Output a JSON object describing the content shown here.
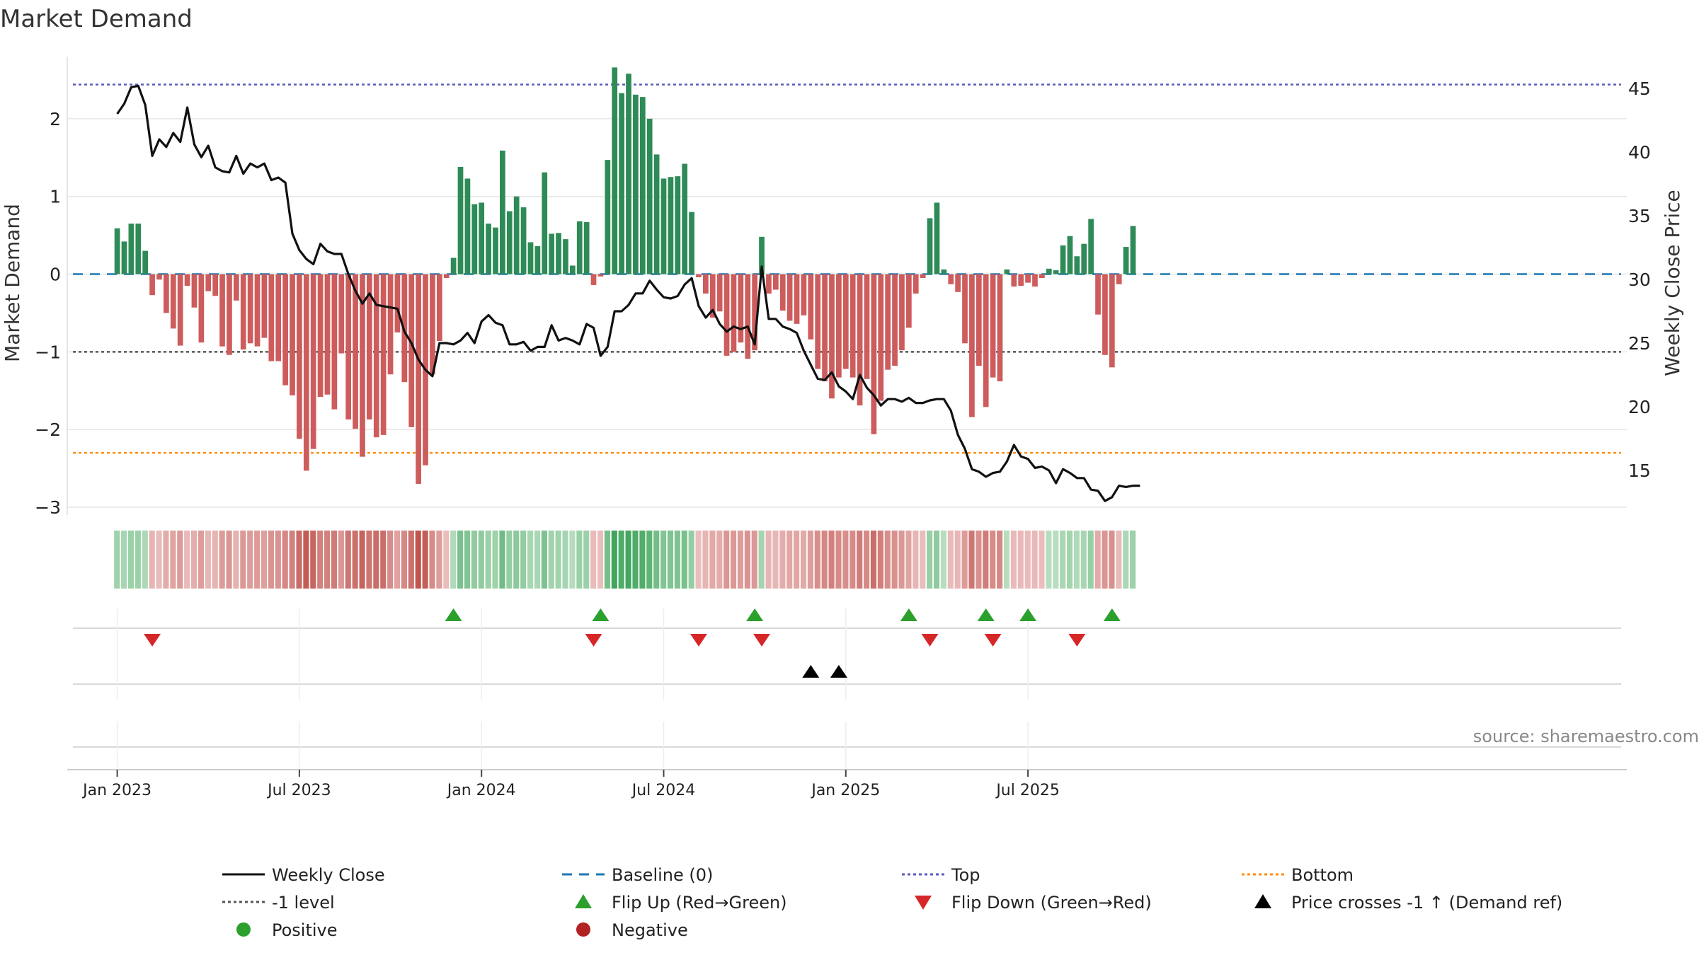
{
  "colors": {
    "green": "#2e8b57",
    "red": "#cd5c5c",
    "price": "#111111",
    "baseline": "#1f77b4",
    "top": "#5b5bbd",
    "bottom": "#ff8c00",
    "minus1": "#555555",
    "flip_up": "#2ca02c",
    "flip_down": "#d62728",
    "cross": "#000000",
    "positive": "#2ca02c",
    "negative": "#b22222",
    "grid": "#e6e6e6",
    "text": "#222222",
    "source": "#888888"
  },
  "chart_data": {
    "type": "bar",
    "title": "Market Demand",
    "ylabel": "Market Demand",
    "y2label": "Weekly Close Price",
    "source": "source: sharemaestro.com",
    "ylim": [
      -3.1,
      2.8
    ],
    "y_ticks": [
      2,
      1,
      0,
      -1,
      -2,
      -3
    ],
    "y_tick_labels": [
      "2",
      "1",
      "0",
      "−1",
      "−2",
      "−3"
    ],
    "y2lim": [
      11.5,
      47.5
    ],
    "y2_ticks": [
      45,
      40,
      35,
      30,
      25,
      20,
      15
    ],
    "y2_tick_labels": [
      "45",
      "40",
      "35",
      "30",
      "25",
      "20",
      "15"
    ],
    "x_ticks": [
      {
        "week": 1,
        "label": "Jan 2023"
      },
      {
        "week": 27,
        "label": "Jul 2023"
      },
      {
        "week": 53,
        "label": "Jan 2024"
      },
      {
        "week": 79,
        "label": "Jul 2024"
      },
      {
        "week": 105,
        "label": "Jan 2025"
      },
      {
        "week": 131,
        "label": "Jul 2025"
      }
    ],
    "reference_lines": {
      "top": 2.44,
      "bottom": -2.3,
      "minus1": -1,
      "baseline": 0
    },
    "demand": [
      0.59,
      0.42,
      0.65,
      0.65,
      0.3,
      -0.27,
      -0.07,
      -0.5,
      -0.7,
      -0.92,
      -0.15,
      -0.43,
      -0.88,
      -0.22,
      -0.28,
      -0.93,
      -1.04,
      -0.34,
      -0.97,
      -0.89,
      -0.93,
      -0.82,
      -1.12,
      -1.12,
      -1.43,
      -1.56,
      -2.12,
      -2.53,
      -2.25,
      -1.58,
      -1.55,
      -1.74,
      -1.02,
      -1.87,
      -1.99,
      -2.35,
      -1.87,
      -2.1,
      -2.07,
      -1.29,
      -0.75,
      -1.39,
      -1.97,
      -2.7,
      -2.46,
      -1.29,
      -0.86,
      -0.05,
      0.21,
      1.38,
      1.23,
      0.9,
      0.92,
      0.65,
      0.6,
      1.59,
      0.81,
      1.0,
      0.86,
      0.41,
      0.36,
      1.31,
      0.52,
      0.53,
      0.45,
      0.11,
      0.68,
      0.67,
      -0.14,
      -0.03,
      1.47,
      2.66,
      2.33,
      2.58,
      2.31,
      2.28,
      2.0,
      1.54,
      1.23,
      1.25,
      1.26,
      1.42,
      0.8,
      -0.04,
      -0.25,
      -0.56,
      -0.48,
      -1.05,
      -1.0,
      -0.88,
      -1.09,
      -0.98,
      0.48,
      -0.25,
      -0.2,
      -0.47,
      -0.6,
      -0.64,
      -0.53,
      -0.84,
      -1.22,
      -1.38,
      -1.6,
      -1.33,
      -1.22,
      -1.33,
      -1.69,
      -1.35,
      -2.06,
      -1.63,
      -1.23,
      -1.18,
      -0.98,
      -0.69,
      -0.25,
      -0.05,
      0.72,
      0.92,
      0.06,
      -0.13,
      -0.23,
      -0.89,
      -1.84,
      -1.18,
      -1.71,
      -1.33,
      -1.38,
      0.06,
      -0.16,
      -0.15,
      -0.11,
      -0.16,
      -0.05,
      0.07,
      0.05,
      0.37,
      0.49,
      0.23,
      0.39,
      0.71,
      -0.52,
      -1.04,
      -1.2,
      -0.13,
      0.35,
      0.62
    ],
    "weekly_close": [
      43.0,
      43.8,
      45.1,
      45.2,
      43.7,
      39.7,
      41.0,
      40.4,
      41.5,
      40.8,
      43.5,
      40.6,
      39.6,
      40.5,
      38.8,
      38.5,
      38.4,
      39.7,
      38.3,
      39.1,
      38.8,
      39.1,
      37.8,
      38.0,
      37.6,
      33.6,
      32.3,
      31.6,
      31.2,
      32.8,
      32.2,
      32.0,
      32.0,
      30.4,
      29.1,
      28.1,
      28.9,
      28.0,
      27.9,
      27.8,
      27.7,
      25.9,
      25.0,
      23.7,
      22.9,
      22.4,
      25.0,
      25.0,
      24.9,
      25.2,
      25.8,
      25.0,
      26.7,
      27.2,
      26.6,
      26.4,
      24.9,
      24.9,
      25.1,
      24.4,
      24.7,
      24.7,
      26.4,
      25.2,
      25.4,
      25.2,
      24.9,
      26.5,
      26.2,
      24.0,
      24.7,
      27.5,
      27.5,
      28.0,
      28.9,
      28.9,
      29.9,
      29.2,
      28.6,
      28.5,
      28.7,
      29.6,
      30.1,
      27.9,
      27.0,
      27.6,
      26.5,
      25.9,
      26.3,
      26.1,
      26.3,
      24.9,
      31.0,
      26.9,
      26.9,
      26.3,
      26.1,
      25.8,
      24.4,
      23.3,
      22.2,
      22.1,
      22.7,
      21.6,
      21.2,
      20.6,
      22.5,
      21.5,
      20.9,
      20.1,
      20.6,
      20.6,
      20.4,
      20.7,
      20.3,
      20.3,
      20.5,
      20.6,
      20.6,
      19.7,
      17.8,
      16.7,
      15.1,
      14.9,
      14.5,
      14.8,
      14.9,
      15.7,
      17.0,
      16.1,
      15.9,
      15.2,
      15.3,
      15.0,
      14.0,
      15.1,
      14.8,
      14.4,
      14.4,
      13.5,
      13.4,
      12.6,
      12.9,
      13.8,
      13.7,
      13.8,
      13.8
    ],
    "flip_up_weeks": [
      49,
      70,
      92,
      114,
      125,
      131,
      143
    ],
    "flip_down_weeks": [
      6,
      69,
      84,
      93,
      117,
      126,
      138
    ],
    "price_cross_weeks": [
      100,
      104
    ],
    "legend": {
      "weekly_close": "Weekly Close",
      "baseline": "Baseline (0)",
      "top": "Top",
      "bottom": "Bottom",
      "minus1": "-1 level",
      "flip_up": "Flip Up (Red→Green)",
      "flip_down": "Flip Down (Green→Red)",
      "price_cross": "Price crosses -1 ↑ (Demand ref)",
      "positive": "Positive",
      "negative": "Negative"
    }
  }
}
